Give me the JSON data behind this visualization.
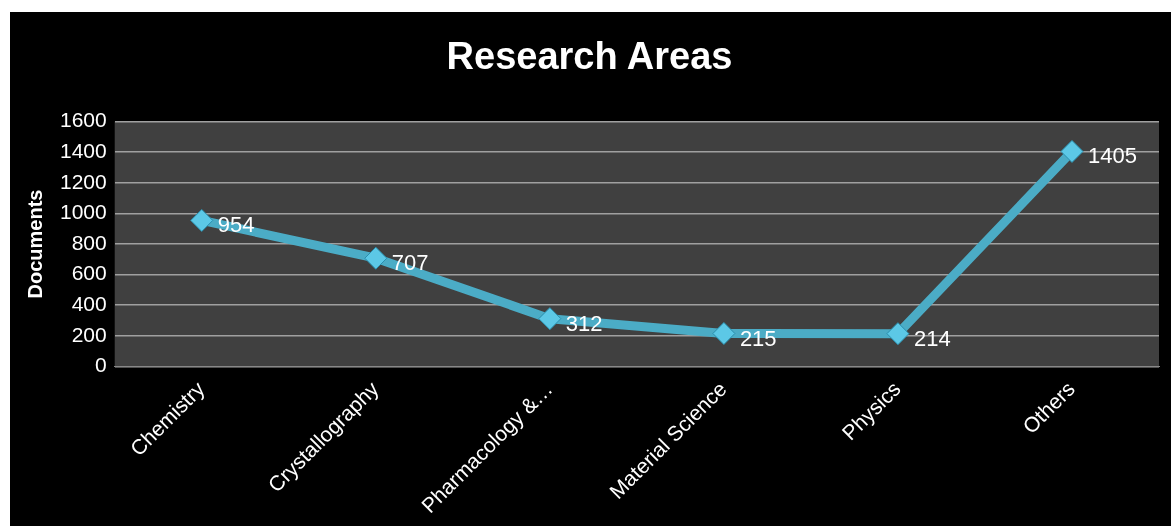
{
  "chart_data": {
    "type": "line",
    "title": "Research Areas",
    "ylabel": "Documents",
    "categories": [
      "Chemistry",
      "Crystallography",
      "Pharmacology &…",
      "Material Science",
      "Physics",
      "Others"
    ],
    "series": [
      {
        "color": "#4bacc6",
        "values": [
          954,
          707,
          312,
          215,
          214,
          1405
        ]
      }
    ],
    "ylim": [
      0,
      1600
    ],
    "yticks": [
      0,
      200,
      400,
      600,
      800,
      1000,
      1200,
      1400,
      1600
    ],
    "grid": "y",
    "marker": "diamond",
    "line_style": "solid",
    "data_labels": true
  }
}
